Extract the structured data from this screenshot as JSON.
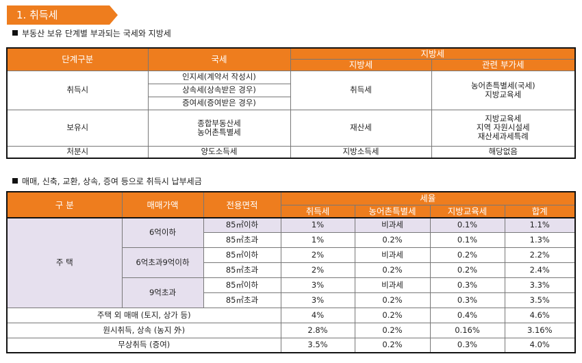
{
  "section_title": "1. 취득세",
  "heading1": "부동산 보유 단계별 부과되는 국세와 지방세",
  "heading2": "매매, 신축, 교환, 상속, 증여 등으로 취득시 납부세금",
  "table1": {
    "headers": {
      "stage": "단계구분",
      "national": "국세",
      "local_group": "지방세",
      "local": "지방세",
      "related": "관련 부가세"
    },
    "acquisition": {
      "stage": "취득시",
      "national": [
        "인지세(계약서 작성시)",
        "상속세(상속받은 경우)",
        "증여세(증여받은 경우)"
      ],
      "local": "취득세",
      "related": "농어촌특별세(국세)\n지방교육세"
    },
    "holding": {
      "stage": "보유시",
      "national": "종합부동산세\n농어촌특별세",
      "local": "재산세",
      "related": "지방교육세\n지역 자원시설세\n재산세과세특례"
    },
    "disposal": {
      "stage": "처분시",
      "national": "양도소득세",
      "local": "지방소득세",
      "related": "해당없음"
    }
  },
  "table2": {
    "headers": {
      "category": "구 분",
      "price": "매매가액",
      "area": "전용면적",
      "rate_group": "세율",
      "acq_tax": "취득세",
      "rural_tax": "농어촌특별세",
      "edu_tax": "지방교육세",
      "total": "합계"
    },
    "housing_label": "주 택",
    "price_groups": [
      "6억이하",
      "6억초과9억이하",
      "9억초과"
    ],
    "housing_rows": [
      {
        "area": "85㎡이하",
        "acq": "1%",
        "rural": "비과세",
        "edu": "0.1%",
        "total": "1.1%"
      },
      {
        "area": "85㎡초과",
        "acq": "1%",
        "rural": "0.2%",
        "edu": "0.1%",
        "total": "1.3%"
      },
      {
        "area": "85㎡이하",
        "acq": "2%",
        "rural": "비과세",
        "edu": "0.2%",
        "total": "2.2%"
      },
      {
        "area": "85㎡초과",
        "acq": "2%",
        "rural": "0.2%",
        "edu": "0.2%",
        "total": "2.4%"
      },
      {
        "area": "85㎡이하",
        "acq": "3%",
        "rural": "비과세",
        "edu": "0.3%",
        "total": "3.3%"
      },
      {
        "area": "85㎡초과",
        "acq": "3%",
        "rural": "0.2%",
        "edu": "0.3%",
        "total": "3.5%"
      }
    ],
    "other_rows": [
      {
        "label": "주택 외 매매 (토지, 상가 등)",
        "acq": "4%",
        "rural": "0.2%",
        "edu": "0.4%",
        "total": "4.6%"
      },
      {
        "label": "원시취득, 상속 (농지 外)",
        "acq": "2.8%",
        "rural": "0.2%",
        "edu": "0.16%",
        "total": "3.16%"
      },
      {
        "label": "무상취득 (증여)",
        "acq": "3.5%",
        "rural": "0.2%",
        "edu": "0.3%",
        "total": "4.0%"
      }
    ]
  }
}
